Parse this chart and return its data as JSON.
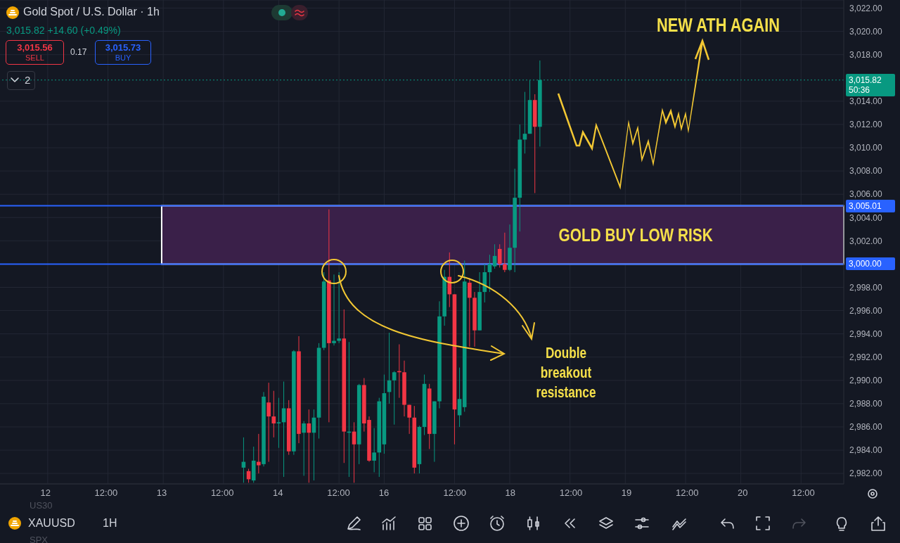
{
  "chart_data": {
    "type": "candlestick",
    "title": "Gold Spot / U.S. Dollar · 1h",
    "categories": [
      null,
      null,
      null,
      null,
      null,
      null,
      null,
      null,
      null,
      "12",
      null,
      null,
      null,
      null,
      null,
      null,
      null,
      null,
      null,
      null,
      null,
      "12:00",
      null,
      null,
      null,
      null,
      null,
      null,
      null,
      null,
      null,
      null,
      "13",
      null,
      null,
      null,
      null,
      null,
      null,
      null,
      null,
      null,
      null,
      null,
      "12:00",
      null,
      null,
      null,
      null,
      null,
      null,
      null,
      null,
      null,
      null,
      "14",
      null,
      null,
      null,
      null,
      null,
      null,
      null,
      null,
      null,
      null,
      null,
      "12:00",
      null,
      null,
      null,
      null,
      null,
      null,
      null,
      null,
      "16",
      null,
      null,
      null,
      null,
      null,
      null,
      null,
      null,
      null,
      null,
      null,
      null,
      null,
      "12:00",
      null,
      null,
      null,
      null,
      null,
      null,
      null,
      null,
      null,
      null,
      "18",
      null,
      null,
      null,
      null,
      null,
      null,
      null,
      null,
      null,
      null,
      null,
      "12:00",
      null,
      null,
      null,
      null,
      null,
      null,
      null,
      null,
      null,
      null,
      "19",
      null,
      null,
      null,
      null,
      null,
      null,
      null,
      null,
      null,
      null,
      null,
      "12:00",
      null,
      null,
      null,
      null,
      null,
      null,
      null,
      null,
      null,
      null,
      "20",
      null,
      null,
      null,
      null,
      null,
      null,
      null,
      null,
      null,
      null,
      null,
      "12:00",
      null,
      null,
      null,
      null,
      null,
      null,
      null,
      null
    ],
    "ylim": [
      2981.1,
      3022.7
    ],
    "yticks": [
      {
        "value": 2982,
        "label": "2,982.00"
      },
      {
        "value": 2984,
        "label": "2,984.00"
      },
      {
        "value": 2986,
        "label": "2,986.00"
      },
      {
        "value": 2988,
        "label": "2,988.00"
      },
      {
        "value": 2990,
        "label": "2,990.00"
      },
      {
        "value": 2992,
        "label": "2,992.00"
      },
      {
        "value": 2994,
        "label": "2,994.00"
      },
      {
        "value": 2996,
        "label": "2,996.00"
      },
      {
        "value": 2998,
        "label": "2,998.00"
      },
      {
        "value": 3002,
        "label": "3,002.00"
      },
      {
        "value": 3004,
        "label": "3,004.00"
      },
      {
        "value": 3006,
        "label": "3,006.00"
      },
      {
        "value": 3008,
        "label": "3,008.00"
      },
      {
        "value": 3010,
        "label": "3,010.00"
      },
      {
        "value": 3012,
        "label": "3,012.00"
      },
      {
        "value": 3014,
        "label": "3,014.00"
      },
      {
        "value": 3018,
        "label": "3,018.00"
      },
      {
        "value": 3020,
        "label": "3,020.00"
      },
      {
        "value": 3022,
        "label": "3,022.00"
      }
    ],
    "grid": true,
    "ohlc": [
      null,
      null,
      null,
      null,
      null,
      null,
      null,
      null,
      null,
      null,
      null,
      null,
      null,
      null,
      null,
      null,
      null,
      null,
      null,
      null,
      null,
      null,
      null,
      null,
      null,
      null,
      null,
      null,
      null,
      null,
      null,
      null,
      null,
      null,
      null,
      null,
      null,
      null,
      null,
      null,
      null,
      null,
      null,
      null,
      null,
      null,
      null,
      null,
      [
        2982.5,
        2985.1,
        2981.2,
        2983.0
      ],
      [
        2982.2,
        2982.4,
        2981.2,
        2981.5
      ],
      [
        2981.4,
        2984.3,
        2981.2,
        2983.1
      ],
      [
        2983.0,
        2985.4,
        2982.0,
        2982.7
      ],
      [
        2982.8,
        2989.0,
        2982.6,
        2988.6
      ],
      [
        2988.1,
        2989.8,
        2983.0,
        2986.9
      ],
      [
        2986.9,
        2989.1,
        2985.1,
        2986.3
      ],
      [
        2986.3,
        2988.5,
        2984.2,
        2986.4
      ],
      [
        2986.4,
        2989.9,
        2981.7,
        2987.6
      ],
      [
        2987.6,
        2988.3,
        2983.6,
        2983.9
      ],
      [
        2983.9,
        2992.6,
        2983.6,
        2992.5
      ],
      [
        2992.5,
        2993.8,
        2984.6,
        2985.4
      ],
      [
        2985.5,
        2986.5,
        2981.8,
        2986.3
      ],
      [
        2986.3,
        2987.5,
        2981.2,
        2985.5
      ],
      [
        2985.5,
        2987.5,
        2981.4,
        2986.8
      ],
      [
        2986.8,
        2993.2,
        2985.0,
        2992.8
      ],
      [
        2992.8,
        2999.3,
        2992.6,
        2998.5
      ],
      [
        2998.6,
        3004.7,
        2986.4,
        2993.2
      ],
      [
        2993.2,
        2999.1,
        2993.0,
        2993.4
      ],
      [
        2993.4,
        2999.3,
        2993.2,
        2993.6
      ],
      [
        2993.6,
        2996.1,
        2982.9,
        2985.6
      ],
      [
        2985.5,
        2993.3,
        2981.7,
        2985.6
      ],
      [
        2985.6,
        2986.4,
        2981.2,
        2984.5
      ],
      [
        2984.5,
        2989.7,
        2982.8,
        2989.6
      ],
      [
        2989.6,
        2990.2,
        2985.6,
        2986.3
      ],
      [
        2986.6,
        2986.9,
        2983.0,
        2983.1
      ],
      [
        2983.1,
        2985.9,
        2982.1,
        2983.8
      ],
      [
        2983.8,
        2988.5,
        2981.7,
        2988.2
      ],
      [
        2984.5,
        2990.5,
        2983.7,
        2988.9
      ],
      [
        2989.0,
        2994.1,
        2988.0,
        2990.0
      ],
      [
        2990.0,
        2990.8,
        2986.2,
        2990.7
      ],
      [
        2990.8,
        2993.1,
        2988.5,
        2990.7
      ],
      [
        2990.7,
        2991.7,
        2986.9,
        2987.9
      ],
      [
        2987.9,
        2987.9,
        2985.4,
        2986.8
      ],
      [
        2986.8,
        2987.8,
        2982.0,
        2982.5
      ],
      [
        2982.8,
        2986.1,
        2982.0,
        2986.0
      ],
      [
        2986.0,
        2990.5,
        2985.3,
        2989.7
      ],
      [
        2989.3,
        2989.7,
        2984.1,
        2985.4
      ],
      [
        2985.4,
        2988.2,
        2983.0,
        2988.2
      ],
      [
        2988.2,
        2996.8,
        2987.6,
        2995.5
      ],
      [
        2995.5,
        2999.5,
        2994.7,
        2998.9
      ],
      [
        2998.9,
        3001.0,
        2996.3,
        2997.4
      ],
      [
        2997.4,
        2997.4,
        2984.5,
        2987.5
      ],
      [
        2987.0,
        2991.1,
        2986.0,
        2988.4
      ],
      [
        2987.7,
        3000.3,
        2987.3,
        2998.5
      ],
      [
        2998.4,
        2998.8,
        2992.9,
        2997.1
      ],
      [
        2997.1,
        2997.6,
        2992.9,
        2994.3
      ],
      [
        2994.3,
        2999.3,
        2994.3,
        2997.6
      ],
      [
        2997.6,
        3000.0,
        2996.7,
        2999.3
      ],
      [
        2999.3,
        3000.8,
        2997.6,
        3000.0
      ],
      [
        2999.8,
        3001.7,
        2999.6,
        3000.7
      ],
      [
        3001.3,
        3001.7,
        2999.7,
        3000.0
      ],
      [
        3000.0,
        3002.7,
        2999.3,
        2999.5
      ],
      [
        2999.5,
        3003.4,
        2999.4,
        3001.4
      ],
      [
        3001.4,
        3008.2,
        2999.3,
        3005.7
      ],
      [
        3005.7,
        3012.0,
        3002.8,
        3010.7
      ],
      [
        3010.7,
        3014.8,
        3009.5,
        3011.2
      ],
      [
        3011.2,
        3015.8,
        3011.2,
        3014.1
      ],
      [
        3014.1,
        3014.6,
        3006.1,
        3011.8
      ],
      [
        3011.8,
        3017.5,
        3010.1,
        3015.82
      ],
      null,
      null,
      null,
      null,
      null,
      null,
      null,
      null,
      null,
      null,
      null,
      null,
      null,
      null,
      null,
      null,
      null,
      null,
      null,
      null,
      null,
      null,
      null,
      null,
      null,
      null,
      null,
      null,
      null,
      null,
      null,
      null,
      null,
      null,
      null,
      null,
      null,
      null,
      null,
      null,
      null,
      null,
      null,
      null,
      null,
      null,
      null,
      null,
      null,
      null,
      null,
      null,
      null,
      null,
      null,
      null,
      null,
      null,
      null,
      null
    ],
    "colors": [
      null,
      null,
      null,
      null,
      null,
      null,
      null,
      null,
      null,
      null,
      null,
      null,
      null,
      null,
      null,
      null,
      null,
      null,
      null,
      null,
      null,
      null,
      null,
      null,
      null,
      null,
      null,
      null,
      null,
      null,
      null,
      null,
      null,
      null,
      null,
      null,
      null,
      null,
      null,
      null,
      null,
      null,
      null,
      null,
      null,
      null,
      null,
      null,
      "#089981",
      "#f23645",
      "#089981",
      "#f23645",
      "#089981",
      "#f23645",
      "#f23645",
      "#089981",
      "#089981",
      "#f23645",
      "#089981",
      "#f23645",
      "#089981",
      "#f23645",
      "#089981",
      "#089981",
      "#089981",
      "#f23645",
      "#089981",
      "#089981",
      "#f23645",
      "#089981",
      "#f23645",
      "#089981",
      "#f23645",
      "#f23645",
      "#089981",
      "#089981",
      "#089981",
      "#089981",
      "#089981",
      "#f23645",
      "#f23645",
      "#f23645",
      "#f23645",
      "#089981",
      "#089981",
      "#f23645",
      "#089981",
      "#089981",
      "#089981",
      "#f23645",
      "#f23645",
      "#089981",
      "#089981",
      "#f23645",
      "#f23645",
      "#089981",
      "#089981",
      "#089981",
      "#089981",
      "#f23645",
      "#f23645",
      "#089981",
      "#089981",
      "#089981",
      "#089981",
      "#089981",
      "#f23645",
      "#089981",
      null,
      null,
      null,
      null,
      null,
      null,
      null,
      null,
      null,
      null,
      null,
      null,
      null,
      null,
      null,
      null,
      null,
      null,
      null,
      null,
      null,
      null,
      null,
      null,
      null,
      null,
      null,
      null,
      null,
      null,
      null,
      null,
      null,
      null,
      null,
      null,
      null,
      null,
      null,
      null,
      null,
      null,
      null,
      null,
      null,
      null,
      null,
      null,
      null,
      null,
      null,
      null,
      null,
      null,
      null,
      null,
      null,
      null,
      null,
      null
    ],
    "ref_lines": [
      {
        "axis": "y",
        "value": 3005.01,
        "label": "3,005.01",
        "color": "#2962ff"
      },
      {
        "axis": "y",
        "value": 3000,
        "label": "3,000.00",
        "color": "#2962ff"
      },
      {
        "axis": "y",
        "value": 3015.82,
        "label": "3,015.82",
        "color": "#089981",
        "line_style": "dotted"
      }
    ],
    "bands": [
      {
        "axis": "y",
        "from": 3000,
        "to": 3005.01,
        "label": "GOLD BUY LOW RISK",
        "color": "#3a2049"
      }
    ],
    "annotations": [
      "3,015.82 +14.60 (+0.49%)",
      "3,015.56",
      "SELL",
      "0.17",
      "3,015.73",
      "BUY",
      "2",
      "NEW ATH AGAIN",
      "Double breakout resistance",
      "50:36",
      "XAUUSD",
      "1H",
      "US30",
      "SPX"
    ]
  }
}
